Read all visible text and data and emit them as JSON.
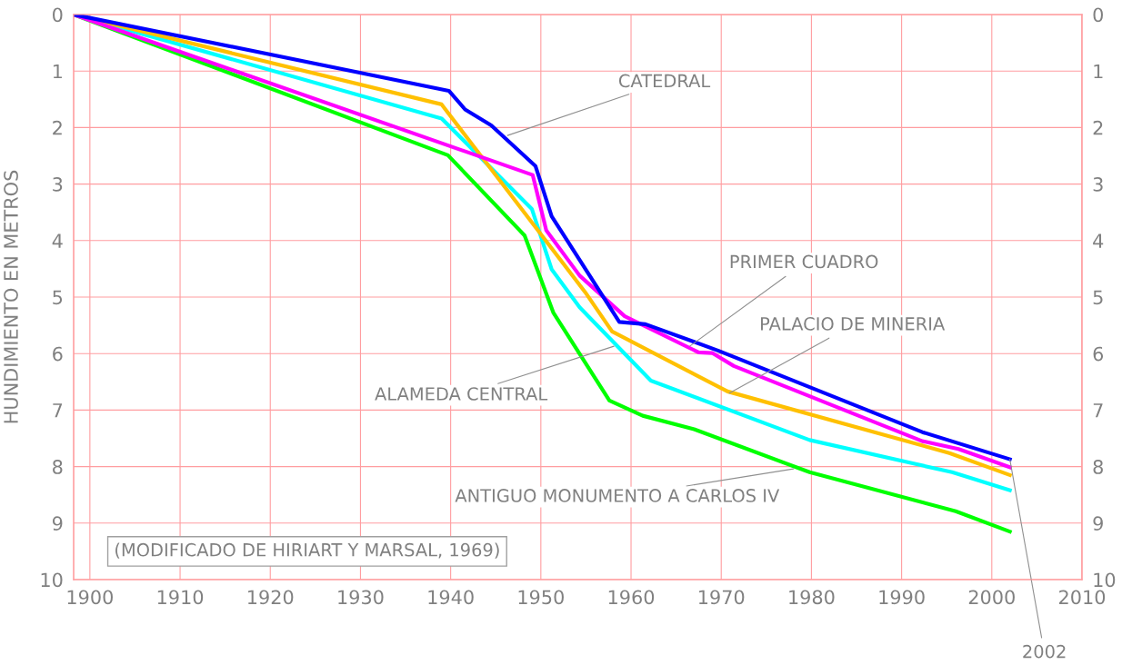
{
  "chart_data": {
    "type": "line",
    "ylabel": "HUNDIMIENTO EN METROS",
    "xlim": [
      1898.2,
      2010
    ],
    "xticks": [
      1900,
      1910,
      1920,
      1930,
      1940,
      1950,
      1960,
      1970,
      1980,
      1990,
      2000,
      2010
    ],
    "ylim": [
      10,
      0
    ],
    "yticks": [
      0,
      1,
      2,
      3,
      4,
      5,
      6,
      7,
      8,
      9,
      10
    ],
    "y2lim": [
      10,
      0
    ],
    "y2ticks": [
      0,
      1,
      2,
      3,
      4,
      5,
      6,
      7,
      8,
      9,
      10
    ],
    "grid": true,
    "legend": false,
    "marker": "none",
    "line_style": "solid",
    "series": [
      {
        "color": "#00ff00",
        "x": [
          1898.2,
          1939.7,
          1948.2,
          1951.4,
          1957.6,
          1961.3,
          1967,
          1979.8,
          1996,
          2002
        ],
        "values": [
          0,
          2.49,
          3.91,
          5.28,
          6.83,
          7.1,
          7.34,
          8.1,
          8.79,
          9.15
        ]
      },
      {
        "color": "#00ffff",
        "x": [
          1898.2,
          1939,
          1949,
          1951.2,
          1954.3,
          1962.2,
          1979.8,
          1995.6,
          2002
        ],
        "values": [
          0,
          1.84,
          3.44,
          4.51,
          5.18,
          6.48,
          7.53,
          8.1,
          8.42
        ]
      },
      {
        "color": "#ffc000",
        "x": [
          1898.2,
          1939,
          1954.9,
          1957.9,
          1970.7,
          1995.3,
          2002
        ],
        "values": [
          0,
          1.59,
          4.91,
          5.61,
          6.67,
          7.76,
          8.15
        ]
      },
      {
        "color": "#ff00ff",
        "x": [
          1898.2,
          1949.1,
          1950.6,
          1954.3,
          1959.3,
          1967.5,
          1969,
          1971.4,
          1992.3,
          1996.3,
          2002
        ],
        "values": [
          0,
          2.84,
          3.82,
          4.62,
          5.34,
          5.98,
          5.99,
          6.22,
          7.55,
          7.69,
          8.01
        ]
      },
      {
        "color": "#0000ff",
        "x": [
          1898.2,
          1939.8,
          1941.6,
          1944.5,
          1949.4,
          1951.2,
          1958.7,
          1961.6,
          1969.7,
          1992.3,
          2002
        ],
        "values": [
          0,
          1.35,
          1.68,
          1.96,
          2.68,
          3.57,
          5.44,
          5.48,
          5.95,
          7.39,
          7.87
        ]
      }
    ],
    "annotations": [
      {
        "text": "CATEDRAL",
        "x": 1946.3,
        "y": 2.14
      },
      {
        "text": "PRIMER CUADRO",
        "x": 1966.5,
        "y": 5.87
      },
      {
        "text": "PALACIO DE MINERIA",
        "x": 1970.9,
        "y": 6.7
      },
      {
        "text": "ALAMEDA CENTRAL",
        "x": 1958.1,
        "y": 5.87
      },
      {
        "text": "ANTIGUO MONUMENTO A CARLOS IV",
        "x": 1978,
        "y": 8.04
      },
      {
        "text": "2002",
        "x": 2002,
        "y": 7.87
      },
      "(MODIFICADO DE HIRIART Y MARSAL, 1969)"
    ]
  }
}
